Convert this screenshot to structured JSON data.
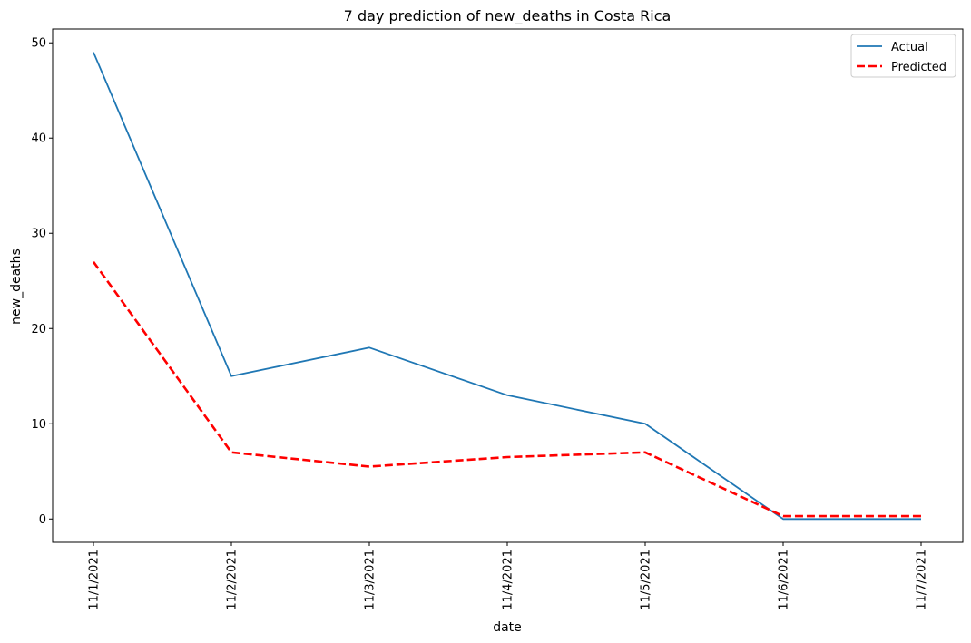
{
  "chart_data": {
    "type": "line",
    "title": "7 day prediction of new_deaths in Costa Rica",
    "xlabel": "date",
    "ylabel": "new_deaths",
    "categories": [
      "11/1/2021",
      "11/2/2021",
      "11/3/2021",
      "11/4/2021",
      "11/5/2021",
      "11/6/2021",
      "11/7/2021"
    ],
    "series": [
      {
        "name": "Actual",
        "color": "#1f77b4",
        "style": "solid",
        "values": [
          49,
          15,
          18,
          13,
          10,
          0,
          0
        ]
      },
      {
        "name": "Predicted",
        "color": "#ff0000",
        "style": "dashed",
        "values": [
          27,
          7,
          5.5,
          6.5,
          7,
          0.3,
          0.3
        ]
      }
    ],
    "ylim": [
      -2.45,
      51.45
    ],
    "yticks": [
      0,
      10,
      20,
      30,
      40,
      50
    ],
    "grid": false,
    "legend_position": "top-right"
  }
}
